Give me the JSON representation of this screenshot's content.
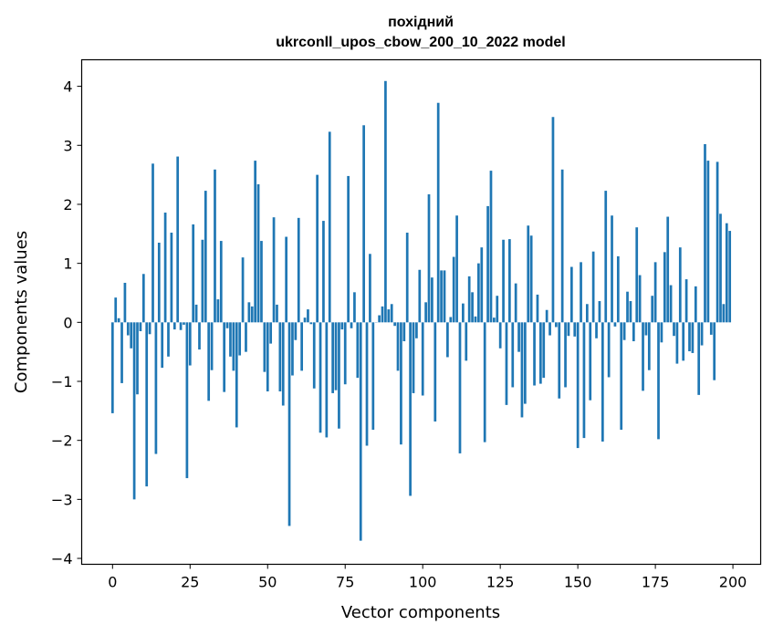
{
  "chart_data": {
    "type": "bar",
    "title": [
      "похідний",
      "ukrconll_upos_cbow_200_10_2022 model"
    ],
    "xlabel": "Vector components",
    "ylabel": "Components values",
    "xlim": [
      -9.95,
      208.95
    ],
    "ylim": [
      -4.1,
      4.45
    ],
    "xticks": [
      0,
      25,
      50,
      75,
      100,
      125,
      150,
      175,
      200
    ],
    "yticks": [
      -4,
      -3,
      -2,
      -1,
      0,
      1,
      2,
      3,
      4
    ],
    "bar_color": "#1f77b4",
    "grid": false,
    "x": [
      0,
      1,
      2,
      3,
      4,
      5,
      6,
      7,
      8,
      9,
      10,
      11,
      12,
      13,
      14,
      15,
      16,
      17,
      18,
      19,
      20,
      21,
      22,
      23,
      24,
      25,
      26,
      27,
      28,
      29,
      30,
      31,
      32,
      33,
      34,
      35,
      36,
      37,
      38,
      39,
      40,
      41,
      42,
      43,
      44,
      45,
      46,
      47,
      48,
      49,
      50,
      51,
      52,
      53,
      54,
      55,
      56,
      57,
      58,
      59,
      60,
      61,
      62,
      63,
      64,
      65,
      66,
      67,
      68,
      69,
      70,
      71,
      72,
      73,
      74,
      75,
      76,
      77,
      78,
      79,
      80,
      81,
      82,
      83,
      84,
      85,
      86,
      87,
      88,
      89,
      90,
      91,
      92,
      93,
      94,
      95,
      96,
      97,
      98,
      99,
      100,
      101,
      102,
      103,
      104,
      105,
      106,
      107,
      108,
      109,
      110,
      111,
      112,
      113,
      114,
      115,
      116,
      117,
      118,
      119,
      120,
      121,
      122,
      123,
      124,
      125,
      126,
      127,
      128,
      129,
      130,
      131,
      132,
      133,
      134,
      135,
      136,
      137,
      138,
      139,
      140,
      141,
      142,
      143,
      144,
      145,
      146,
      147,
      148,
      149,
      150,
      151,
      152,
      153,
      154,
      155,
      156,
      157,
      158,
      159,
      160,
      161,
      162,
      163,
      164,
      165,
      166,
      167,
      168,
      169,
      170,
      171,
      172,
      173,
      174,
      175,
      176,
      177,
      178,
      179,
      180,
      181,
      182,
      183,
      184,
      185,
      186,
      187,
      188,
      189,
      190,
      191,
      192,
      193,
      194,
      195,
      196,
      197,
      198,
      199
    ],
    "values": [
      -1.54,
      0.42,
      0.07,
      -1.03,
      0.67,
      -0.22,
      -0.44,
      -3.0,
      -1.22,
      -0.15,
      0.82,
      -2.78,
      -0.2,
      2.69,
      -2.23,
      1.35,
      -0.77,
      1.86,
      -0.58,
      1.52,
      -0.12,
      2.81,
      -0.13,
      -0.04,
      -2.64,
      -0.73,
      1.66,
      0.3,
      -0.46,
      1.4,
      2.23,
      -1.33,
      -0.81,
      2.59,
      0.39,
      1.38,
      -1.18,
      -0.1,
      -0.58,
      -0.82,
      -1.78,
      -0.56,
      1.1,
      -0.5,
      0.34,
      0.27,
      2.74,
      2.34,
      1.38,
      -0.84,
      -1.17,
      -0.36,
      1.78,
      0.3,
      -1.17,
      -1.41,
      1.45,
      -3.45,
      -0.9,
      -0.3,
      1.77,
      -0.82,
      0.08,
      0.22,
      -0.03,
      -1.12,
      2.5,
      -1.87,
      1.72,
      -1.95,
      3.23,
      -1.2,
      -1.15,
      -1.8,
      -0.12,
      -1.05,
      2.48,
      -0.1,
      0.51,
      -0.94,
      -3.7,
      3.34,
      -2.09,
      1.16,
      -1.82,
      0.0,
      0.12,
      0.27,
      4.09,
      0.22,
      0.31,
      -0.06,
      -0.82,
      -2.07,
      -0.32,
      1.52,
      -2.94,
      -1.2,
      -0.27,
      0.89,
      -1.24,
      0.34,
      2.17,
      0.76,
      -1.68,
      3.72,
      0.88,
      0.88,
      -0.59,
      0.09,
      1.11,
      1.81,
      -2.22,
      0.32,
      -0.65,
      0.78,
      0.51,
      0.1,
      1.0,
      1.27,
      -2.03,
      1.97,
      2.57,
      0.08,
      0.45,
      -0.44,
      1.4,
      -1.4,
      1.41,
      -1.1,
      0.66,
      -0.5,
      -1.61,
      -1.38,
      1.64,
      1.47,
      -1.07,
      0.47,
      -1.04,
      -0.94,
      0.21,
      -0.22,
      3.48,
      -0.08,
      -1.29,
      2.59,
      -1.1,
      -0.23,
      0.94,
      -0.24,
      -2.13,
      1.02,
      -1.96,
      0.31,
      -1.32,
      1.2,
      -0.27,
      0.36,
      -2.02,
      2.23,
      -0.93,
      1.81,
      -0.07,
      1.12,
      -1.82,
      -0.3,
      0.52,
      0.36,
      -0.32,
      1.61,
      0.8,
      -1.16,
      -0.22,
      -0.81,
      0.45,
      1.02,
      -1.98,
      -0.34,
      1.19,
      1.79,
      0.63,
      -0.23,
      -0.7,
      1.27,
      -0.65,
      0.73,
      -0.49,
      -0.52,
      0.61,
      -1.23,
      -0.39,
      3.02,
      2.74,
      -0.21,
      -0.98,
      2.72,
      1.84,
      0.31,
      1.68,
      1.55
    ]
  }
}
